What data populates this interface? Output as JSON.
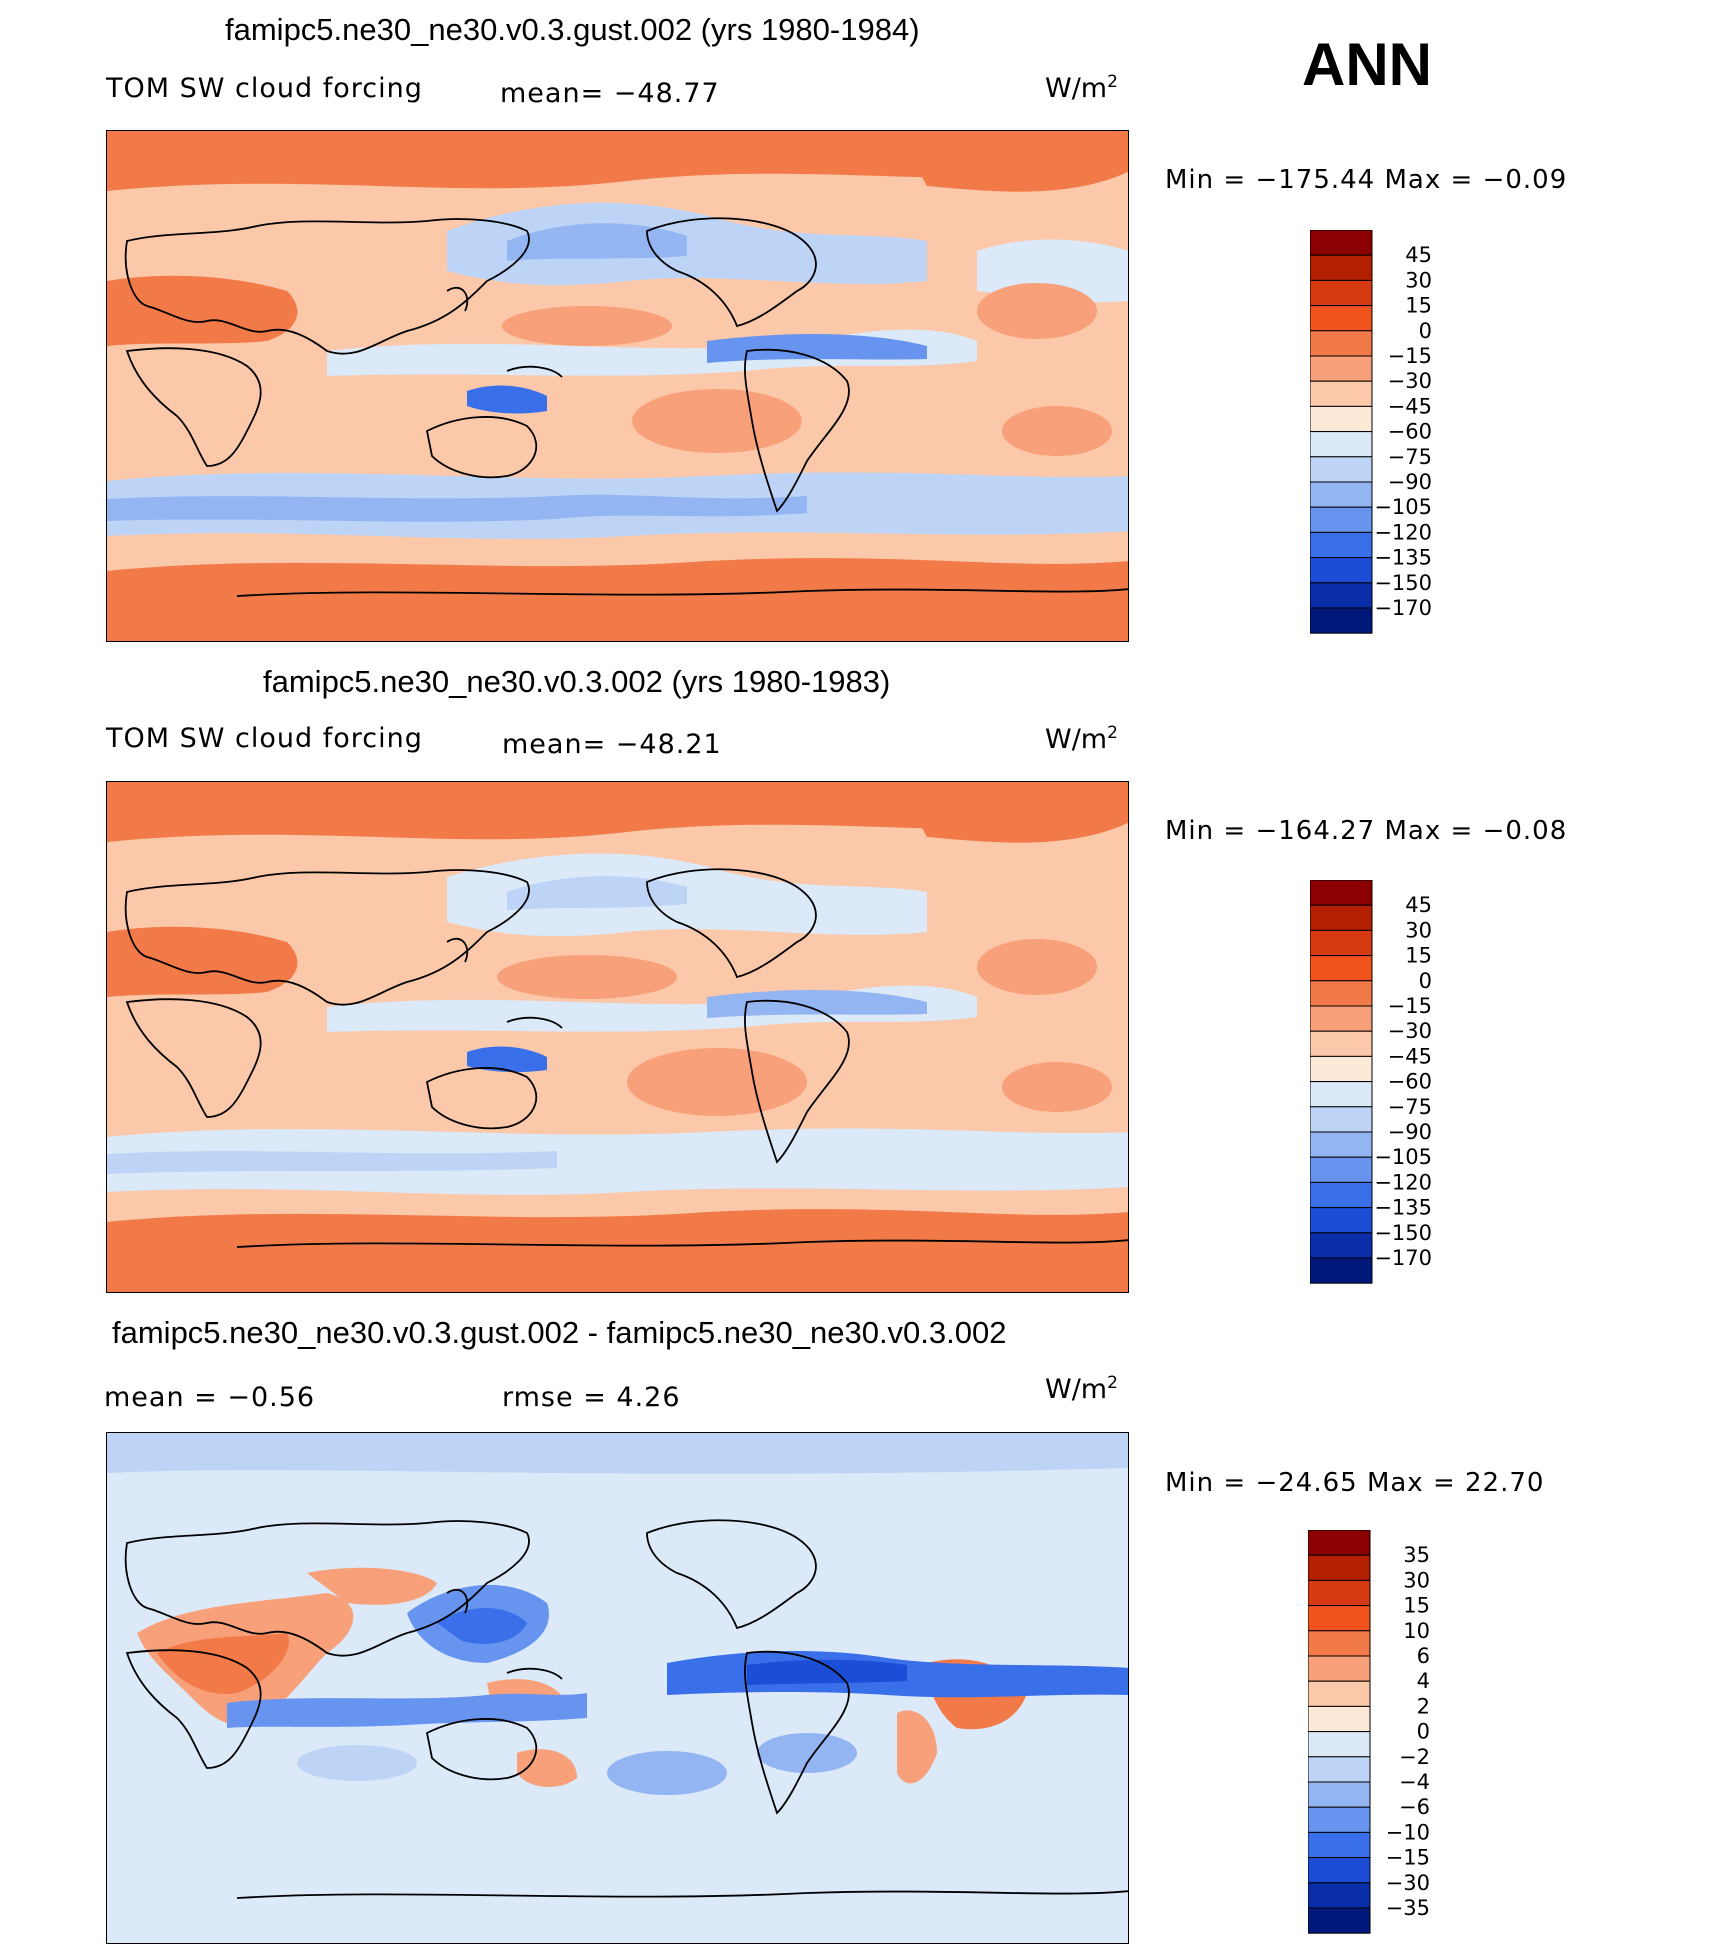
{
  "season": "ANN",
  "panels": [
    {
      "title": "famipc5.ne30_ne30.v0.3.gust.002 (yrs 1980-1984)",
      "variable": "TOM SW cloud forcing",
      "mean_text": "mean= −48.77",
      "units": "W/m",
      "units_sup": "2",
      "min_label": "Min  =",
      "min_value": "−175.44",
      "max_label": "Max  =",
      "max_value": "−0.09",
      "levels": [
        "45",
        "30",
        "15",
        "0",
        "−15",
        "−30",
        "−45",
        "−60",
        "−75",
        "−90",
        "−105",
        "−120",
        "−135",
        "−150",
        "−170"
      ]
    },
    {
      "title": "famipc5.ne30_ne30.v0.3.002 (yrs 1980-1983)",
      "variable": "TOM SW cloud forcing",
      "mean_text": "mean= −48.21",
      "units": "W/m",
      "units_sup": "2",
      "min_label": "Min  =",
      "min_value": "−164.27",
      "max_label": "Max  =",
      "max_value": "−0.08",
      "levels": [
        "45",
        "30",
        "15",
        "0",
        "−15",
        "−30",
        "−45",
        "−60",
        "−75",
        "−90",
        "−105",
        "−120",
        "−135",
        "−150",
        "−170"
      ]
    },
    {
      "title": "famipc5.ne30_ne30.v0.3.gust.002 - famipc5.ne30_ne30.v0.3.002",
      "mean_label": "mean  =",
      "mean_value": "−0.56",
      "rmse_label": "rmse  =",
      "rmse_value": "4.26",
      "units": "W/m",
      "units_sup": "2",
      "min_label": "Min  =",
      "min_value": "−24.65",
      "max_label": "Max  =",
      "max_value": "22.70",
      "levels": [
        "35",
        "30",
        "15",
        "10",
        "6",
        "4",
        "2",
        "0",
        "−2",
        "−4",
        "−6",
        "−10",
        "−15",
        "−30",
        "−35"
      ]
    }
  ],
  "chart_data": [
    {
      "type": "heatmap",
      "title": "famipc5.ne30_ne30.v0.3.gust.002 (yrs 1980-1984)",
      "variable": "TOM SW cloud forcing",
      "units": "W/m2",
      "mean": -48.77,
      "min": -175.44,
      "max": -0.09,
      "contour_levels": [
        45,
        30,
        15,
        0,
        -15,
        -30,
        -45,
        -60,
        -75,
        -90,
        -105,
        -120,
        -135,
        -150,
        -170
      ],
      "colors": [
        "#8b0000",
        "#b22000",
        "#d63a10",
        "#f2531d",
        "#f27a48",
        "#f7a07a",
        "#fbc8aa",
        "#fde9d8",
        "#dce9f8",
        "#bdd4f6",
        "#93b5f2",
        "#6694ef",
        "#3a6fea",
        "#1c4dd6",
        "#0a2ea8",
        "#00187a"
      ]
    },
    {
      "type": "heatmap",
      "title": "famipc5.ne30_ne30.v0.3.002 (yrs 1980-1983)",
      "variable": "TOM SW cloud forcing",
      "units": "W/m2",
      "mean": -48.21,
      "min": -164.27,
      "max": -0.08,
      "contour_levels": [
        45,
        30,
        15,
        0,
        -15,
        -30,
        -45,
        -60,
        -75,
        -90,
        -105,
        -120,
        -135,
        -150,
        -170
      ],
      "colors": [
        "#8b0000",
        "#b22000",
        "#d63a10",
        "#f2531d",
        "#f27a48",
        "#f7a07a",
        "#fbc8aa",
        "#fde9d8",
        "#dce9f8",
        "#bdd4f6",
        "#93b5f2",
        "#6694ef",
        "#3a6fea",
        "#1c4dd6",
        "#0a2ea8",
        "#00187a"
      ]
    },
    {
      "type": "heatmap",
      "title": "famipc5.ne30_ne30.v0.3.gust.002 - famipc5.ne30_ne30.v0.3.002",
      "units": "W/m2",
      "mean": -0.56,
      "rmse": 4.26,
      "min": -24.65,
      "max": 22.7,
      "contour_levels": [
        35,
        30,
        15,
        10,
        6,
        4,
        2,
        0,
        -2,
        -4,
        -6,
        -10,
        -15,
        -30,
        -35
      ],
      "colors": [
        "#8b0000",
        "#b22000",
        "#d63a10",
        "#f2531d",
        "#f27a48",
        "#f7a07a",
        "#fbc8aa",
        "#fde9d8",
        "#dce9f8",
        "#bdd4f6",
        "#93b5f2",
        "#6694ef",
        "#3a6fea",
        "#1c4dd6",
        "#0a2ea8",
        "#00187a"
      ]
    }
  ],
  "palette": {
    "land_outline": "#000000",
    "colorbar": [
      "#8b0000",
      "#b22000",
      "#d63a10",
      "#f2531d",
      "#f27a48",
      "#f7a07a",
      "#fbc8aa",
      "#fde9d8",
      "#dce9f8",
      "#bdd4f6",
      "#93b5f2",
      "#6694ef",
      "#3a6fea",
      "#1c4dd6",
      "#0a2ea8",
      "#00187a"
    ]
  }
}
